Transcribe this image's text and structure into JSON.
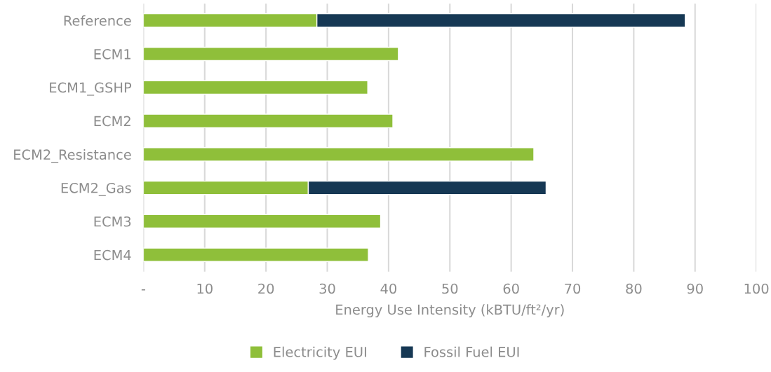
{
  "chart_data": {
    "type": "bar",
    "orientation": "horizontal",
    "stacked": true,
    "categories": [
      "Reference",
      "ECM1",
      "ECM1_GSHP",
      "ECM2",
      "ECM2_Resistance",
      "ECM2_Gas",
      "ECM3",
      "ECM4"
    ],
    "series": [
      {
        "name": "Electricity EUI",
        "color": "#8fbf3a",
        "values": [
          28.3,
          41.6,
          36.6,
          40.7,
          63.7,
          26.9,
          38.7,
          36.7
        ]
      },
      {
        "name": "Fossil Fuel EUI",
        "color": "#163854",
        "values": [
          60.1,
          null,
          null,
          null,
          null,
          38.8,
          null,
          null
        ]
      }
    ],
    "xlabel": "Energy Use Intensity (kBTU/ft²/yr)",
    "xlim": [
      0,
      100
    ],
    "xticks": [
      {
        "value": 0,
        "label": "-"
      },
      10,
      20,
      30,
      40,
      50,
      60,
      70,
      80,
      90,
      100
    ],
    "grid": "x",
    "legend": "bottom"
  }
}
